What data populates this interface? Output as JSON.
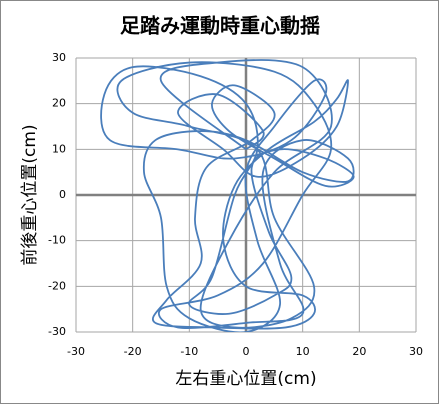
{
  "chart_data": {
    "type": "line",
    "title": "足踏み運動時重心動揺",
    "xlabel": "左右重心位置(cm)",
    "ylabel": "前後重心位置(cm)",
    "x": [
      0,
      -15,
      -5,
      10,
      15,
      5,
      -3,
      -8,
      -2,
      8,
      12,
      5,
      2,
      -10,
      -20,
      -22,
      -10,
      5,
      12,
      15,
      10,
      3,
      -5,
      -15,
      -12,
      0,
      10,
      6,
      3,
      10,
      18,
      18,
      10,
      0,
      -8,
      -16,
      -18,
      -15,
      -14,
      -10,
      0,
      6,
      2,
      0,
      5,
      12,
      14,
      8,
      -2,
      -12,
      -24,
      -25,
      -20,
      -8,
      0,
      2,
      -2,
      -6,
      -10,
      -3,
      5,
      8,
      4,
      1,
      6,
      14,
      19,
      14,
      5,
      -3,
      -6,
      -2,
      5,
      1,
      -7,
      -9,
      -8,
      -14,
      -16,
      -6,
      7,
      12,
      10,
      0,
      -4,
      -2,
      4,
      12,
      16,
      18,
      16,
      10,
      2,
      -4,
      -12,
      -5,
      3,
      0
    ],
    "series": [
      {
        "color": "#4a7ebb",
        "values": [
          10,
          25,
          29,
          28,
          15,
          5,
          -10,
          -25,
          -29,
          -27,
          -20,
          -5,
          10,
          15,
          18,
          25,
          29,
          27,
          20,
          10,
          0,
          -15,
          -22,
          -25,
          -29,
          -28,
          -26,
          -15,
          5,
          12,
          8,
          3,
          5,
          12,
          14,
          12,
          5,
          -5,
          -20,
          -27,
          -30,
          -24,
          -10,
          5,
          15,
          25,
          22,
          12,
          8,
          10,
          12,
          22,
          28,
          26,
          20,
          10,
          0,
          -18,
          -24,
          -26,
          -22,
          -18,
          -8,
          6,
          10,
          8,
          4,
          2,
          8,
          14,
          20,
          24,
          18,
          12,
          6,
          -5,
          -15,
          -23,
          -28,
          -29,
          -29,
          -26,
          -22,
          -20,
          -10,
          2,
          10,
          16,
          21,
          25,
          15,
          8,
          4,
          10,
          18,
          22,
          14,
          10
        ]
      }
    ],
    "xlim": [
      -30,
      30
    ],
    "ylim": [
      -30,
      30
    ],
    "xticks": [
      -30,
      -20,
      -10,
      0,
      10,
      20,
      30
    ],
    "yticks": [
      -30,
      -20,
      -10,
      0,
      10,
      20,
      30
    ],
    "grid": true
  }
}
